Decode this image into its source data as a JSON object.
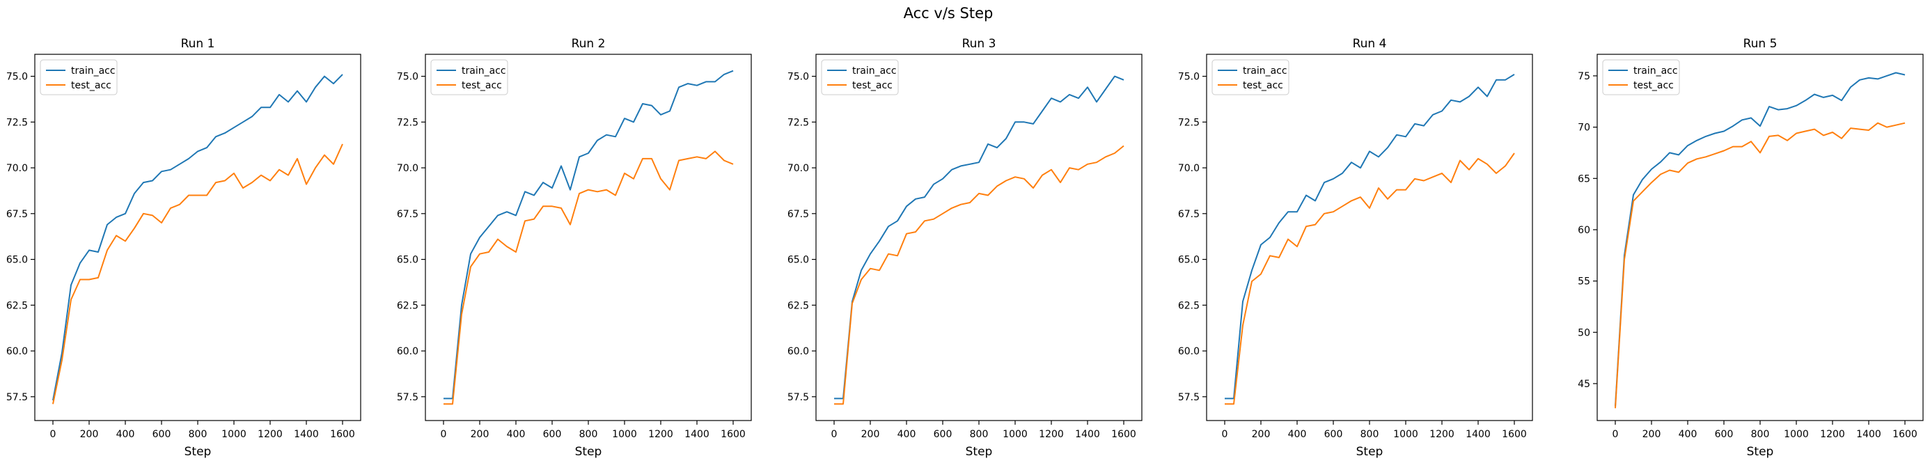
{
  "figure": {
    "title": "Acc v/s Step"
  },
  "chart_data": [
    {
      "type": "line",
      "title": "Run 1",
      "xlabel": "Step",
      "ylabel": "",
      "xlim": [
        -100,
        1700
      ],
      "ylim": [
        56.2,
        76.2
      ],
      "xticks": [
        0,
        200,
        400,
        600,
        800,
        1000,
        1200,
        1400,
        1600
      ],
      "yticks": [
        57.5,
        60.0,
        62.5,
        65.0,
        67.5,
        70.0,
        72.5,
        75.0
      ],
      "ytick_labels": [
        "57.5",
        "60.0",
        "62.5",
        "65.0",
        "67.5",
        "70.0",
        "72.5",
        "75.0"
      ],
      "legend": "top-left",
      "x": [
        0,
        50,
        100,
        150,
        200,
        250,
        300,
        350,
        400,
        450,
        500,
        550,
        600,
        650,
        700,
        750,
        800,
        850,
        900,
        950,
        1000,
        1050,
        1100,
        1150,
        1200,
        1250,
        1300,
        1350,
        1400,
        1450,
        1500,
        1550,
        1600
      ],
      "series": [
        {
          "name": "train_acc",
          "color": "#1f77b4",
          "values": [
            57.3,
            59.9,
            63.6,
            64.8,
            65.5,
            65.4,
            66.9,
            67.3,
            67.5,
            68.6,
            69.2,
            69.3,
            69.8,
            69.9,
            70.2,
            70.5,
            70.9,
            71.1,
            71.7,
            71.9,
            72.2,
            72.5,
            72.8,
            73.3,
            73.3,
            74.0,
            73.6,
            74.2,
            73.6,
            74.4,
            75.0,
            74.6,
            75.1
          ]
        },
        {
          "name": "test_acc",
          "color": "#ff7f0e",
          "values": [
            57.1,
            59.5,
            62.8,
            63.9,
            63.9,
            64.0,
            65.5,
            66.3,
            66.0,
            66.7,
            67.5,
            67.4,
            67.0,
            67.8,
            68.0,
            68.5,
            68.5,
            68.5,
            69.2,
            69.3,
            69.7,
            68.9,
            69.2,
            69.6,
            69.3,
            69.9,
            69.6,
            70.5,
            69.1,
            70.0,
            70.7,
            70.2,
            71.3
          ]
        }
      ]
    },
    {
      "type": "line",
      "title": "Run 2",
      "xlabel": "Step",
      "ylabel": "",
      "xlim": [
        -100,
        1700
      ],
      "ylim": [
        56.2,
        76.2
      ],
      "xticks": [
        0,
        200,
        400,
        600,
        800,
        1000,
        1200,
        1400,
        1600
      ],
      "yticks": [
        57.5,
        60.0,
        62.5,
        65.0,
        67.5,
        70.0,
        72.5,
        75.0
      ],
      "ytick_labels": [
        "57.5",
        "60.0",
        "62.5",
        "65.0",
        "67.5",
        "70.0",
        "72.5",
        "75.0"
      ],
      "legend": "top-left",
      "x": [
        0,
        50,
        100,
        150,
        200,
        250,
        300,
        350,
        400,
        450,
        500,
        550,
        600,
        650,
        700,
        750,
        800,
        850,
        900,
        950,
        1000,
        1050,
        1100,
        1150,
        1200,
        1250,
        1300,
        1350,
        1400,
        1450,
        1500,
        1550,
        1600
      ],
      "series": [
        {
          "name": "train_acc",
          "color": "#1f77b4",
          "values": [
            57.4,
            57.4,
            62.5,
            65.3,
            66.2,
            66.8,
            67.4,
            67.6,
            67.4,
            68.7,
            68.5,
            69.2,
            68.9,
            70.1,
            68.8,
            70.6,
            70.8,
            71.5,
            71.8,
            71.7,
            72.7,
            72.5,
            73.5,
            73.4,
            72.9,
            73.1,
            74.4,
            74.6,
            74.5,
            74.7,
            74.7,
            75.1,
            75.3
          ]
        },
        {
          "name": "test_acc",
          "color": "#ff7f0e",
          "values": [
            57.1,
            57.1,
            62.0,
            64.6,
            65.3,
            65.4,
            66.1,
            65.7,
            65.4,
            67.1,
            67.2,
            67.9,
            67.9,
            67.8,
            66.9,
            68.6,
            68.8,
            68.7,
            68.8,
            68.5,
            69.7,
            69.4,
            70.5,
            70.5,
            69.4,
            68.8,
            70.4,
            70.5,
            70.6,
            70.5,
            70.9,
            70.4,
            70.2
          ]
        }
      ]
    },
    {
      "type": "line",
      "title": "Run 3",
      "xlabel": "Step",
      "ylabel": "",
      "xlim": [
        -100,
        1700
      ],
      "ylim": [
        56.2,
        76.2
      ],
      "xticks": [
        0,
        200,
        400,
        600,
        800,
        1000,
        1200,
        1400,
        1600
      ],
      "yticks": [
        57.5,
        60.0,
        62.5,
        65.0,
        67.5,
        70.0,
        72.5,
        75.0
      ],
      "ytick_labels": [
        "57.5",
        "60.0",
        "62.5",
        "65.0",
        "67.5",
        "70.0",
        "72.5",
        "75.0"
      ],
      "legend": "top-left",
      "x": [
        0,
        50,
        100,
        150,
        200,
        250,
        300,
        350,
        400,
        450,
        500,
        550,
        600,
        650,
        700,
        750,
        800,
        850,
        900,
        950,
        1000,
        1050,
        1100,
        1150,
        1200,
        1250,
        1300,
        1350,
        1400,
        1450,
        1500,
        1550,
        1600
      ],
      "series": [
        {
          "name": "train_acc",
          "color": "#1f77b4",
          "values": [
            57.4,
            57.4,
            62.7,
            64.4,
            65.3,
            66.0,
            66.8,
            67.1,
            67.9,
            68.3,
            68.4,
            69.1,
            69.4,
            69.9,
            70.1,
            70.2,
            70.3,
            71.3,
            71.1,
            71.6,
            72.5,
            72.5,
            72.4,
            73.1,
            73.8,
            73.6,
            74.0,
            73.8,
            74.4,
            73.6,
            74.3,
            75.0,
            74.8
          ]
        },
        {
          "name": "test_acc",
          "color": "#ff7f0e",
          "values": [
            57.1,
            57.1,
            62.6,
            63.9,
            64.5,
            64.4,
            65.3,
            65.2,
            66.4,
            66.5,
            67.1,
            67.2,
            67.5,
            67.8,
            68.0,
            68.1,
            68.6,
            68.5,
            69.0,
            69.3,
            69.5,
            69.4,
            68.9,
            69.6,
            69.9,
            69.2,
            70.0,
            69.9,
            70.2,
            70.3,
            70.6,
            70.8,
            71.2
          ]
        }
      ]
    },
    {
      "type": "line",
      "title": "Run 4",
      "xlabel": "Step",
      "ylabel": "",
      "xlim": [
        -100,
        1700
      ],
      "ylim": [
        56.2,
        76.2
      ],
      "xticks": [
        0,
        200,
        400,
        600,
        800,
        1000,
        1200,
        1400,
        1600
      ],
      "yticks": [
        57.5,
        60.0,
        62.5,
        65.0,
        67.5,
        70.0,
        72.5,
        75.0
      ],
      "ytick_labels": [
        "57.5",
        "60.0",
        "62.5",
        "65.0",
        "67.5",
        "70.0",
        "72.5",
        "75.0"
      ],
      "legend": "top-left",
      "x": [
        0,
        50,
        100,
        150,
        200,
        250,
        300,
        350,
        400,
        450,
        500,
        550,
        600,
        650,
        700,
        750,
        800,
        850,
        900,
        950,
        1000,
        1050,
        1100,
        1150,
        1200,
        1250,
        1300,
        1350,
        1400,
        1450,
        1500,
        1550,
        1600
      ],
      "series": [
        {
          "name": "train_acc",
          "color": "#1f77b4",
          "values": [
            57.4,
            57.4,
            62.7,
            64.4,
            65.8,
            66.2,
            67.0,
            67.6,
            67.6,
            68.5,
            68.2,
            69.2,
            69.4,
            69.7,
            70.3,
            70.0,
            70.9,
            70.6,
            71.1,
            71.8,
            71.7,
            72.4,
            72.3,
            72.9,
            73.1,
            73.7,
            73.6,
            73.9,
            74.4,
            73.9,
            74.8,
            74.8,
            75.1
          ]
        },
        {
          "name": "test_acc",
          "color": "#ff7f0e",
          "values": [
            57.1,
            57.1,
            61.4,
            63.8,
            64.2,
            65.2,
            65.1,
            66.1,
            65.7,
            66.8,
            66.9,
            67.5,
            67.6,
            67.9,
            68.2,
            68.4,
            67.8,
            68.9,
            68.3,
            68.8,
            68.8,
            69.4,
            69.3,
            69.5,
            69.7,
            69.2,
            70.4,
            69.9,
            70.5,
            70.2,
            69.7,
            70.1,
            70.8
          ]
        }
      ]
    },
    {
      "type": "line",
      "title": "Run 5",
      "xlabel": "Step",
      "ylabel": "",
      "xlim": [
        -100,
        1700
      ],
      "ylim": [
        41.4,
        77.1
      ],
      "xticks": [
        0,
        200,
        400,
        600,
        800,
        1000,
        1200,
        1400,
        1600
      ],
      "yticks": [
        45,
        50,
        55,
        60,
        65,
        70,
        75
      ],
      "ytick_labels": [
        "45",
        "50",
        "55",
        "60",
        "65",
        "70",
        "75"
      ],
      "legend": "top-left",
      "x": [
        0,
        50,
        100,
        150,
        200,
        250,
        300,
        350,
        400,
        450,
        500,
        550,
        600,
        650,
        700,
        750,
        800,
        850,
        900,
        950,
        1000,
        1050,
        1100,
        1150,
        1200,
        1250,
        1300,
        1350,
        1400,
        1450,
        1500,
        1550,
        1600
      ],
      "series": [
        {
          "name": "train_acc",
          "color": "#1f77b4",
          "values": [
            42.8,
            57.5,
            63.4,
            64.9,
            65.9,
            66.6,
            67.5,
            67.3,
            68.2,
            68.7,
            69.1,
            69.4,
            69.6,
            70.1,
            70.7,
            70.9,
            70.1,
            72.0,
            71.7,
            71.8,
            72.1,
            72.6,
            73.2,
            72.9,
            73.1,
            72.6,
            73.9,
            74.6,
            74.8,
            74.7,
            75.0,
            75.3,
            75.1
          ]
        },
        {
          "name": "test_acc",
          "color": "#ff7f0e",
          "values": [
            42.6,
            57.1,
            62.8,
            63.7,
            64.6,
            65.4,
            65.8,
            65.6,
            66.5,
            66.9,
            67.1,
            67.4,
            67.7,
            68.1,
            68.1,
            68.6,
            67.5,
            69.1,
            69.2,
            68.7,
            69.4,
            69.6,
            69.8,
            69.2,
            69.5,
            68.9,
            69.9,
            69.8,
            69.7,
            70.4,
            70.0,
            70.2,
            70.4
          ]
        }
      ]
    }
  ]
}
